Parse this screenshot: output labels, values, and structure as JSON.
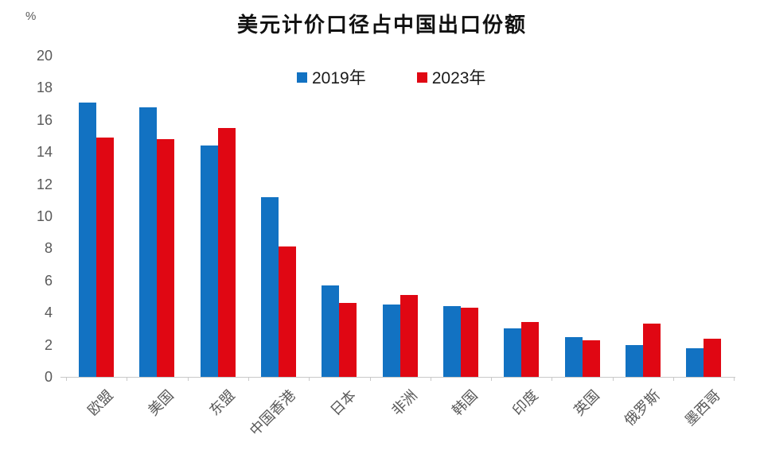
{
  "chart_data": {
    "type": "bar",
    "title": "美元计价口径占中国出口份额",
    "unit_label": "%",
    "categories": [
      "欧盟",
      "美国",
      "东盟",
      "中国香港",
      "日本",
      "非洲",
      "韩国",
      "印度",
      "英国",
      "俄罗斯",
      "墨西哥"
    ],
    "series": [
      {
        "name": "2019年",
        "color": "#1272c2",
        "values": [
          17.1,
          16.8,
          14.4,
          11.2,
          5.7,
          4.5,
          4.4,
          3.0,
          2.5,
          2.0,
          1.8
        ]
      },
      {
        "name": "2023年",
        "color": "#e00713",
        "values": [
          14.9,
          14.8,
          15.5,
          8.1,
          4.6,
          5.1,
          4.3,
          3.4,
          2.3,
          3.3,
          2.4
        ]
      }
    ],
    "ylim": [
      0,
      20
    ],
    "ytick_step": 2,
    "yticks": [
      "0",
      "2",
      "4",
      "6",
      "8",
      "10",
      "12",
      "14",
      "16",
      "18",
      "20"
    ],
    "grid": false,
    "legend_position": "top-center",
    "colors": {
      "axis": "#c9c9c9",
      "tick_label": "#595959",
      "legend_text": "#1a1a1a",
      "title_text": "#111111"
    }
  }
}
